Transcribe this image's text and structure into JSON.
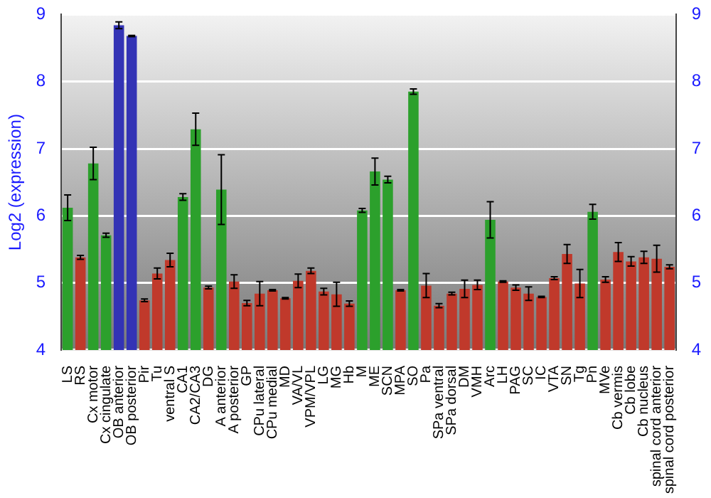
{
  "chart_data": {
    "type": "bar",
    "ylabel": "Log2 (expression)",
    "categories": [
      "LS",
      "RS",
      "Cx motor",
      "Cx cingulate",
      "OB anterior",
      "OB posterior",
      "Pir",
      "Tu",
      "ventral S",
      "CA1",
      "CA2/CA3",
      "DG",
      "A anterior",
      "A posterior",
      "GP",
      "CPu lateral",
      "CPu medial",
      "MD",
      "VA/VL",
      "VPM/VPL",
      "LG",
      "MG",
      "Hb",
      "M",
      "ME",
      "SCN",
      "MPA",
      "SO",
      "Pa",
      "SPa ventral",
      "SPa dorsal",
      "DM",
      "VMH",
      "Arc",
      "LH",
      "PAG",
      "SC",
      "IC",
      "VTA",
      "SN",
      "Tg",
      "Pn",
      "MVe",
      "Cb vermis",
      "Cb lobe",
      "Cb nucleus",
      "spinal cord anterior",
      "spinal cord posterior"
    ],
    "values": [
      6.12,
      5.38,
      6.78,
      5.71,
      8.84,
      8.68,
      4.74,
      5.14,
      5.34,
      6.28,
      7.29,
      4.93,
      6.39,
      5.02,
      4.7,
      4.84,
      4.89,
      4.77,
      5.03,
      5.18,
      4.87,
      4.83,
      4.69,
      6.08,
      6.66,
      6.54,
      4.89,
      7.85,
      4.96,
      4.66,
      4.84,
      4.91,
      4.97,
      5.94,
      5.02,
      4.93,
      4.84,
      4.79,
      5.07,
      5.43,
      4.99,
      6.06,
      5.05,
      5.46,
      5.32,
      5.38,
      5.36,
      5.24
    ],
    "errors": [
      0.19,
      0.03,
      0.24,
      0.03,
      0.05,
      0.01,
      0.02,
      0.08,
      0.1,
      0.05,
      0.24,
      0.02,
      0.52,
      0.1,
      0.04,
      0.18,
      0.01,
      0.01,
      0.1,
      0.04,
      0.05,
      0.18,
      0.04,
      0.03,
      0.2,
      0.05,
      0.01,
      0.04,
      0.18,
      0.03,
      0.02,
      0.13,
      0.07,
      0.27,
      0.01,
      0.04,
      0.1,
      0.01,
      0.02,
      0.14,
      0.21,
      0.11,
      0.04,
      0.14,
      0.07,
      0.09,
      0.2,
      0.03
    ],
    "colors": [
      "#2ca02c",
      "#c0392b",
      "#2ca02c",
      "#2ca02c",
      "#3333b5",
      "#3333b5",
      "#c0392b",
      "#c0392b",
      "#c0392b",
      "#2ca02c",
      "#2ca02c",
      "#c0392b",
      "#2ca02c",
      "#c0392b",
      "#c0392b",
      "#c0392b",
      "#c0392b",
      "#c0392b",
      "#c0392b",
      "#c0392b",
      "#c0392b",
      "#c0392b",
      "#c0392b",
      "#2ca02c",
      "#2ca02c",
      "#2ca02c",
      "#c0392b",
      "#2ca02c",
      "#c0392b",
      "#c0392b",
      "#c0392b",
      "#c0392b",
      "#c0392b",
      "#2ca02c",
      "#c0392b",
      "#c0392b",
      "#c0392b",
      "#c0392b",
      "#c0392b",
      "#c0392b",
      "#c0392b",
      "#2ca02c",
      "#c0392b",
      "#c0392b",
      "#c0392b",
      "#c0392b",
      "#c0392b",
      "#c0392b"
    ],
    "ylim": [
      4,
      9
    ],
    "yticks": [
      4,
      5,
      6,
      7,
      8,
      9
    ],
    "y2lim": [
      4,
      9
    ],
    "y2ticks": [
      4,
      5,
      6,
      7,
      8,
      9
    ],
    "grid": "y",
    "legend": false
  }
}
